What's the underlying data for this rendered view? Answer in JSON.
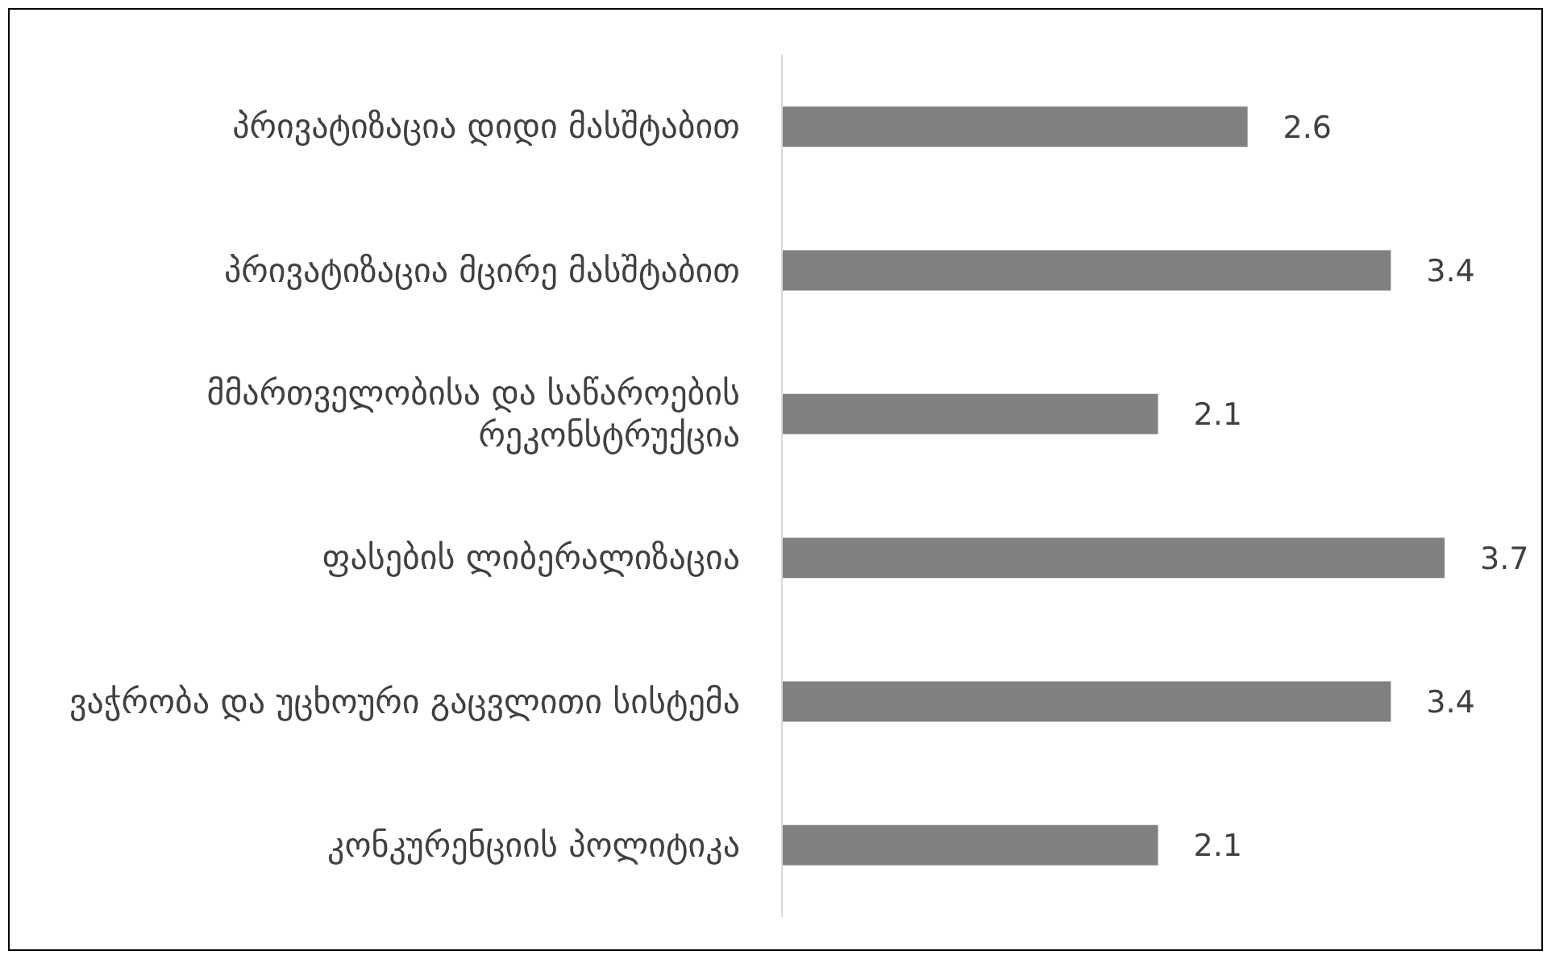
{
  "chart_data": {
    "type": "bar",
    "orientation": "horizontal",
    "categories": [
      "პრივატიზაცია დიდი მასშტაბით",
      "პრივატიზაცია მცირე მასშტაბით",
      "მმართველობისა და საწაროების რეკონსტრუქცია",
      "ფასების ლიბერალიზაცია",
      "ვაჭრობა და უცხოური გაცვლითი სისტემა",
      "კონკურენციის პოლიტიკა"
    ],
    "values": [
      2.6,
      3.4,
      2.1,
      3.7,
      3.4,
      2.1
    ],
    "color": "#808080",
    "data_labels": true
  }
}
